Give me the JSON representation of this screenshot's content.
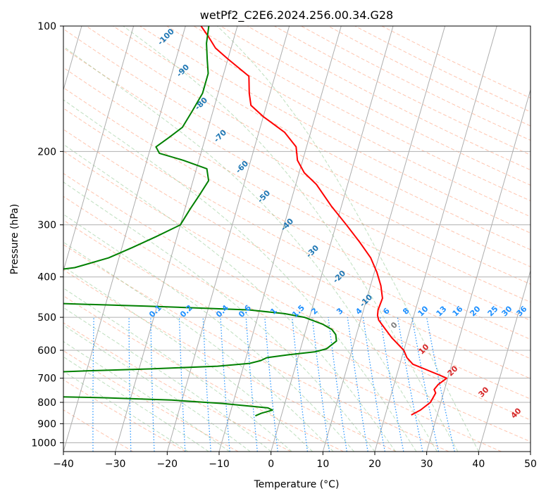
{
  "chart_data": {
    "type": "line",
    "chart_kind": "skew-t log-p diagram",
    "title": "wetPf2_C2E6.2024.256.00.34.G28",
    "xlabel": "Temperature (°C)",
    "ylabel": "Pressure (hPa)",
    "xlim": [
      -40,
      50
    ],
    "ylim": [
      1050,
      100
    ],
    "y_scale": "log",
    "grid": true,
    "x_ticks": [
      -40,
      -30,
      -20,
      -10,
      0,
      10,
      20,
      30,
      40,
      50
    ],
    "x_tick_labels": [
      "−40",
      "−30",
      "−20",
      "−10",
      "0",
      "10",
      "20",
      "30",
      "40",
      "50"
    ],
    "y_ticks": [
      100,
      200,
      300,
      400,
      500,
      600,
      700,
      800,
      900,
      1000
    ],
    "y_tick_labels": [
      "100",
      "200",
      "300",
      "400",
      "500",
      "600",
      "700",
      "800",
      "900",
      "1000"
    ],
    "series": [
      {
        "color": "#ff0000",
        "points": [
          {
            "p": 858,
            "t": 25.0
          },
          {
            "p": 835,
            "t": 26.5
          },
          {
            "p": 800,
            "t": 28.0
          },
          {
            "p": 760,
            "t": 28.5
          },
          {
            "p": 745,
            "t": 28.0
          },
          {
            "p": 725,
            "t": 28.5
          },
          {
            "p": 700,
            "t": 29.8
          },
          {
            "p": 690,
            "t": 28.5
          },
          {
            "p": 665,
            "t": 25.0
          },
          {
            "p": 648,
            "t": 22.5
          },
          {
            "p": 625,
            "t": 21.0
          },
          {
            "p": 600,
            "t": 20.0
          },
          {
            "p": 560,
            "t": 17.0
          },
          {
            "p": 530,
            "t": 15.0
          },
          {
            "p": 508,
            "t": 13.5
          },
          {
            "p": 495,
            "t": 13.0
          },
          {
            "p": 480,
            "t": 12.8
          },
          {
            "p": 450,
            "t": 13.0
          },
          {
            "p": 420,
            "t": 12.0
          },
          {
            "p": 390,
            "t": 10.5
          },
          {
            "p": 360,
            "t": 8.5
          },
          {
            "p": 330,
            "t": 5.5
          },
          {
            "p": 300,
            "t": 2.0
          },
          {
            "p": 270,
            "t": -2.0
          },
          {
            "p": 240,
            "t": -6.0
          },
          {
            "p": 225,
            "t": -9.0
          },
          {
            "p": 210,
            "t": -11.0
          },
          {
            "p": 195,
            "t": -12.0
          },
          {
            "p": 180,
            "t": -15.0
          },
          {
            "p": 165,
            "t": -20.0
          },
          {
            "p": 155,
            "t": -23.0
          },
          {
            "p": 145,
            "t": -24.0
          },
          {
            "p": 132,
            "t": -25.0
          },
          {
            "p": 120,
            "t": -30.0
          },
          {
            "p": 113,
            "t": -33.0
          },
          {
            "p": 106,
            "t": -35.0
          },
          {
            "p": 100,
            "t": -37.0
          }
        ]
      },
      {
        "color": "#008000",
        "points": [
          {
            "p": 862,
            "t": -5.0
          },
          {
            "p": 850,
            "t": -4.0
          },
          {
            "p": 835,
            "t": -2.0
          },
          {
            "p": 825,
            "t": -3.0
          },
          {
            "p": 805,
            "t": -12.0
          },
          {
            "p": 790,
            "t": -22.0
          },
          {
            "p": 780,
            "t": -35.0
          },
          {
            "p": 775,
            "t": -45.0
          },
          {
            "p": 770,
            "t": -55.0
          },
          {
            "p": 760,
            "t": -62.0
          },
          {
            "p": 750,
            "t": -70.0
          },
          {
            "p": 745,
            "t": -80.0
          },
          {
            "p": 720,
            "t": -80.0
          },
          {
            "p": 700,
            "t": -67.0
          },
          {
            "p": 690,
            "t": -60.0
          },
          {
            "p": 680,
            "t": -50.0
          },
          {
            "p": 672,
            "t": -40.0
          },
          {
            "p": 665,
            "t": -28.0
          },
          {
            "p": 655,
            "t": -15.0
          },
          {
            "p": 645,
            "t": -9.0
          },
          {
            "p": 635,
            "t": -7.0
          },
          {
            "p": 625,
            "t": -6.0
          },
          {
            "p": 615,
            "t": -2.0
          },
          {
            "p": 605,
            "t": 3.0
          },
          {
            "p": 595,
            "t": 5.0
          },
          {
            "p": 570,
            "t": 6.5
          },
          {
            "p": 550,
            "t": 6.0
          },
          {
            "p": 535,
            "t": 5.0
          },
          {
            "p": 520,
            "t": 3.0
          },
          {
            "p": 500,
            "t": -1.0
          },
          {
            "p": 490,
            "t": -5.0
          },
          {
            "p": 480,
            "t": -12.0
          },
          {
            "p": 475,
            "t": -22.0
          },
          {
            "p": 470,
            "t": -32.0
          },
          {
            "p": 465,
            "t": -45.0
          },
          {
            "p": 458,
            "t": -60.0
          },
          {
            "p": 450,
            "t": -72.0
          },
          {
            "p": 440,
            "t": -82.0
          },
          {
            "p": 432,
            "t": -87.0
          },
          {
            "p": 425,
            "t": -87.0
          },
          {
            "p": 418,
            "t": -83.0
          },
          {
            "p": 410,
            "t": -75.0
          },
          {
            "p": 400,
            "t": -65.0
          },
          {
            "p": 390,
            "t": -55.0
          },
          {
            "p": 380,
            "t": -48.0
          },
          {
            "p": 360,
            "t": -42.0
          },
          {
            "p": 340,
            "t": -38.0
          },
          {
            "p": 320,
            "t": -34.0
          },
          {
            "p": 300,
            "t": -30.0
          },
          {
            "p": 275,
            "t": -29.0
          },
          {
            "p": 255,
            "t": -28.0
          },
          {
            "p": 235,
            "t": -27.0
          },
          {
            "p": 220,
            "t": -28.0
          },
          {
            "p": 210,
            "t": -33.0
          },
          {
            "p": 202,
            "t": -38.0
          },
          {
            "p": 195,
            "t": -39.0
          },
          {
            "p": 185,
            "t": -37.0
          },
          {
            "p": 175,
            "t": -35.0
          },
          {
            "p": 160,
            "t": -34.0
          },
          {
            "p": 145,
            "t": -33.0
          },
          {
            "p": 130,
            "t": -33.0
          },
          {
            "p": 120,
            "t": -34.0
          },
          {
            "p": 110,
            "t": -35.0
          },
          {
            "p": 100,
            "t": -35.5
          }
        ]
      }
    ],
    "dry_adiabat_labels": [
      "-100",
      "-90",
      "-80",
      "-70",
      "-60",
      "-50",
      "-40",
      "-30",
      "-20",
      "-10"
    ],
    "mixing_ratio_labels": [
      "0.1",
      "0.2",
      "0.4",
      "0.6",
      "1",
      "1.5",
      "2",
      "3",
      "4",
      "6",
      "8",
      "10",
      "13",
      "16",
      "20",
      "25",
      "30",
      "36"
    ],
    "moist_adiabat_labels": [
      "0",
      "10",
      "20",
      "30",
      "40"
    ],
    "colors": {
      "temperature": "#ff0000",
      "dewpoint": "#008000",
      "isotherm": "#999999",
      "isobar": "#b0b0b0",
      "dry_adiabat": "#ff9f7a",
      "moist_adiabat": "#7fbf7f",
      "mixing_ratio": "#1e90ff",
      "dry_label": "#1f77b4",
      "moist_label": "#d62728"
    }
  }
}
